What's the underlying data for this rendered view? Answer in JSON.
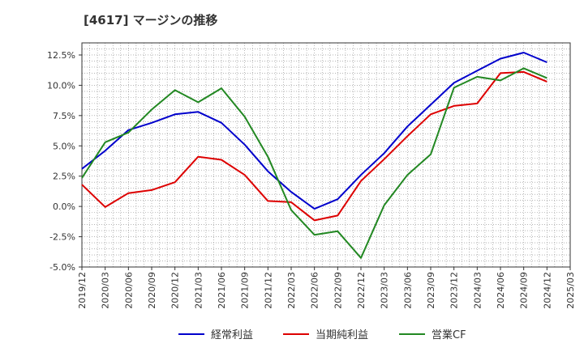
{
  "chart_data": {
    "type": "line",
    "title": "[4617]  マージンの推移",
    "x": [
      "2019/12",
      "2020/03",
      "2020/06",
      "2020/09",
      "2020/12",
      "2021/03",
      "2021/06",
      "2021/09",
      "2021/12",
      "2022/03",
      "2022/06",
      "2022/09",
      "2022/12",
      "2023/03",
      "2023/06",
      "2023/09",
      "2023/12",
      "2024/03",
      "2024/06",
      "2024/09",
      "2024/12"
    ],
    "x_ticks": [
      "2019/12",
      "2020/03",
      "2020/06",
      "2020/09",
      "2020/12",
      "2021/03",
      "2021/06",
      "2021/09",
      "2021/12",
      "2022/03",
      "2022/06",
      "2022/09",
      "2022/12",
      "2023/03",
      "2023/06",
      "2023/09",
      "2023/12",
      "2024/03",
      "2024/06",
      "2024/09",
      "2024/12",
      "2025/03"
    ],
    "y_ticks": [
      "-5.0%",
      "-2.5%",
      "0.0%",
      "2.5%",
      "5.0%",
      "7.5%",
      "10.0%",
      "12.5%"
    ],
    "ylim": [
      -5.0,
      13.5
    ],
    "grid": true,
    "legend_position": "bottom",
    "series": [
      {
        "name": "経常利益",
        "color": "#0000cc",
        "values": [
          3.1,
          4.6,
          6.3,
          6.9,
          7.6,
          7.8,
          6.9,
          5.1,
          2.9,
          1.2,
          -0.2,
          0.6,
          2.6,
          4.4,
          6.6,
          8.4,
          10.2,
          11.2,
          12.2,
          12.7,
          11.9
        ]
      },
      {
        "name": "当期純利益",
        "color": "#dd0000",
        "values": [
          1.8,
          -0.05,
          1.1,
          1.35,
          2.0,
          4.1,
          3.85,
          2.6,
          0.45,
          0.35,
          -1.15,
          -0.75,
          2.1,
          3.9,
          5.8,
          7.6,
          8.3,
          8.5,
          11.0,
          11.1,
          10.3
        ]
      },
      {
        "name": "営業CF",
        "color": "#228822",
        "values": [
          2.35,
          5.3,
          6.1,
          8.0,
          9.6,
          8.6,
          9.75,
          7.4,
          4.1,
          -0.3,
          -2.35,
          -2.05,
          -4.25,
          0.1,
          2.6,
          4.3,
          9.8,
          10.7,
          10.4,
          11.4,
          10.6
        ]
      }
    ]
  }
}
